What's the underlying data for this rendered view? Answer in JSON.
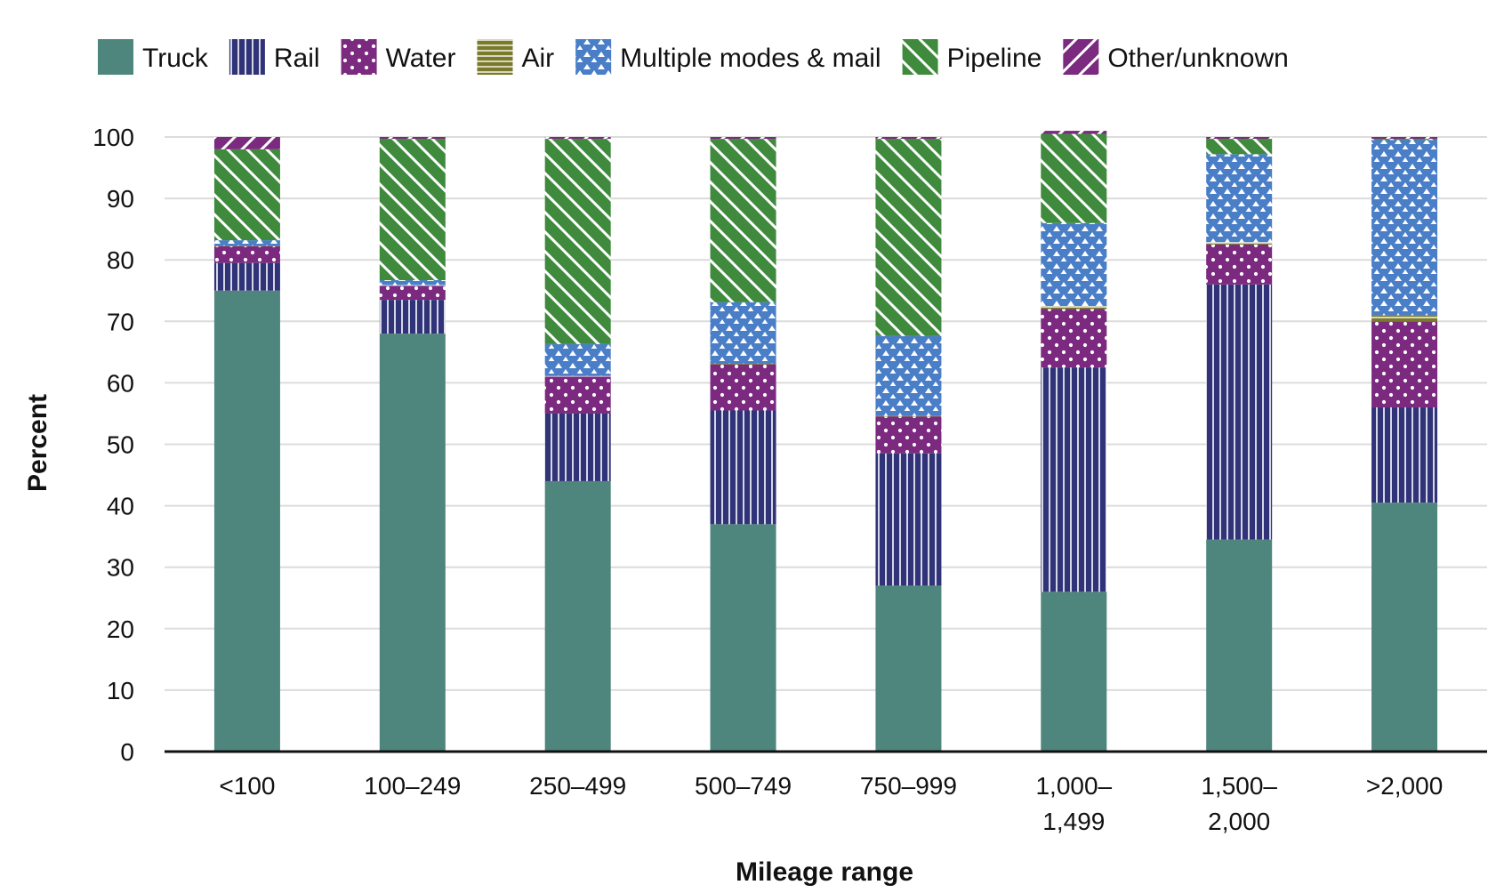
{
  "chart_data": {
    "type": "bar",
    "stacked": true,
    "title": "",
    "xlabel": "Mileage range",
    "ylabel": "Percent",
    "ylim": [
      0,
      100
    ],
    "yticks": [
      0,
      10,
      20,
      30,
      40,
      50,
      60,
      70,
      80,
      90,
      100
    ],
    "grid": true,
    "legend_position": "top",
    "categories": [
      "<100",
      "100–249",
      "250–499",
      "500–749",
      "750–999",
      "1,000–1,499",
      "1,500–2,000",
      ">2,000"
    ],
    "category_label_lines": [
      [
        "<100"
      ],
      [
        "100–249"
      ],
      [
        "250–499"
      ],
      [
        "500–749"
      ],
      [
        "750–999"
      ],
      [
        "1,000–",
        "1,499"
      ],
      [
        "1,500–",
        "2,000"
      ],
      [
        ">2,000"
      ]
    ],
    "series": [
      {
        "name": "Truck",
        "color": "#4e857c",
        "pattern": "solid",
        "values": [
          75,
          68,
          44,
          37,
          27,
          26,
          34.5,
          40.5
        ]
      },
      {
        "name": "Rail",
        "color": "#303378",
        "pattern": "vertical-lines",
        "values": [
          4.5,
          5.5,
          11,
          18.5,
          21.5,
          36.5,
          41.5,
          15.5
        ]
      },
      {
        "name": "Water",
        "color": "#7b2a7f",
        "pattern": "dots",
        "values": [
          2.7,
          2.3,
          6,
          7.5,
          6,
          9.5,
          6.5,
          14
        ]
      },
      {
        "name": "Air",
        "color": "#7a7a2a",
        "pattern": "horizontal-lines",
        "values": [
          0.1,
          0.1,
          0.1,
          0.1,
          0.1,
          0.5,
          0.4,
          1.0
        ]
      },
      {
        "name": "Multiple modes & mail",
        "color": "#4a7fc8",
        "pattern": "triangles",
        "values": [
          0.9,
          0.8,
          5.2,
          10,
          13,
          13.5,
          14.3,
          28.5
        ]
      },
      {
        "name": "Pipeline",
        "color": "#3f8a3d",
        "pattern": "diagonal-down",
        "values": [
          14.8,
          23,
          33.4,
          26.6,
          32.1,
          14.5,
          2.5,
          0.2
        ]
      },
      {
        "name": "Other/unknown",
        "color": "#7b2a7f",
        "pattern": "diagonal-up",
        "values": [
          2.0,
          0.3,
          0.3,
          0.3,
          0.3,
          0.5,
          0.3,
          0.3
        ]
      }
    ]
  }
}
